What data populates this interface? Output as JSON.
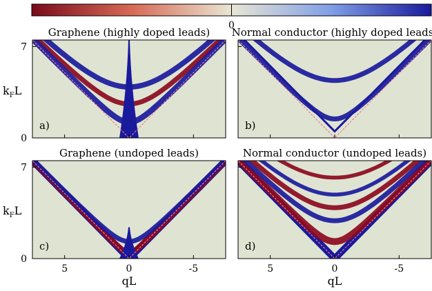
{
  "colorbar": {
    "center_label": "0",
    "colors": {
      "negative": "#8b0a1e",
      "neutral": "#dfe4d2",
      "positive": "#1a1a9c"
    }
  },
  "shared_axes": {
    "xlabel": "qL",
    "ylabel_main": "k",
    "ylabel_sub": "F",
    "ylabel_tail": "L",
    "xticks": [
      {
        "value": 5,
        "label": "5"
      },
      {
        "value": 0,
        "label": "0"
      },
      {
        "value": -5,
        "label": "-5"
      }
    ],
    "yticks": [
      {
        "value": 0,
        "label": "0"
      },
      {
        "value": 7,
        "label": "7"
      }
    ],
    "xlim": [
      7.5,
      -7.5
    ],
    "ylim": [
      0,
      7.5
    ]
  },
  "chart_data": [
    {
      "type": "heatmap",
      "title": "Graphene (highly doped leads)",
      "panel_label": "a)",
      "dashed_lines": "k_F = |q|",
      "features": [
        {
          "kind": "band",
          "sign": "positive",
          "min_kF": 3.9,
          "rel_width": 0.55
        },
        {
          "kind": "band",
          "sign": "negative",
          "min_kF": 2.6,
          "rel_width": 0.5
        },
        {
          "kind": "band",
          "sign": "positive",
          "min_kF": 1.2,
          "rel_width": 0.6
        },
        {
          "kind": "spike",
          "sign": "positive",
          "kF_range": [
            0,
            7.5
          ]
        }
      ]
    },
    {
      "type": "heatmap",
      "title": "Normal conductor (highly doped leads)",
      "panel_label": "b)",
      "dashed_lines": "k_F = |q|",
      "features": [
        {
          "kind": "band",
          "sign": "positive",
          "min_kF": 4.4,
          "rel_width": 0.5
        },
        {
          "kind": "band",
          "sign": "positive",
          "min_kF": 1.45,
          "rel_width": 0.5
        },
        {
          "kind": "line",
          "sign": "positive",
          "relation": "k_F = |q| + 0.5"
        }
      ]
    },
    {
      "type": "heatmap",
      "title": "Graphene (undoped leads)",
      "panel_label": "c)",
      "dashed_lines": "k_F = |q|",
      "features": [
        {
          "kind": "edge",
          "sign": "positive",
          "relation": "k_F = |q|"
        },
        {
          "kind": "band",
          "sign": "negative",
          "min_kF": 0.4,
          "rel_width": 0.6
        },
        {
          "kind": "band",
          "sign": "positive",
          "min_kF": 1.3,
          "rel_width": 0.5
        },
        {
          "kind": "spike",
          "sign": "positive",
          "kF_range": [
            0,
            2.4
          ]
        }
      ]
    },
    {
      "type": "heatmap",
      "title": "Normal conductor (undoped leads)",
      "panel_label": "d)",
      "dashed_lines": "k_F = |q|",
      "features": [
        {
          "kind": "edge",
          "sign": "positive",
          "relation": "k_F = |q|"
        },
        {
          "kind": "band",
          "sign": "negative",
          "min_kF": 1.3,
          "rel_width": 0.7
        },
        {
          "kind": "band",
          "sign": "positive",
          "min_kF": 2.9,
          "rel_width": 0.5
        },
        {
          "kind": "band",
          "sign": "negative",
          "min_kF": 3.9,
          "rel_width": 0.5
        },
        {
          "kind": "band",
          "sign": "positive",
          "min_kF": 4.9,
          "rel_width": 0.4
        },
        {
          "kind": "band",
          "sign": "negative",
          "min_kF": 6.2,
          "rel_width": 0.4
        }
      ]
    }
  ]
}
